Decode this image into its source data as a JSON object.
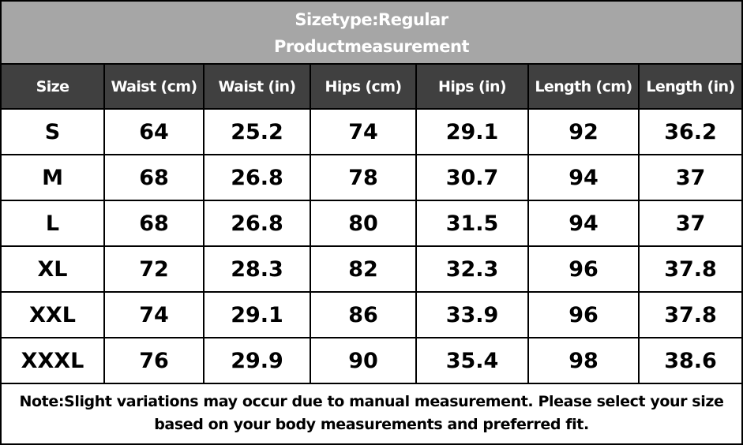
{
  "header": {
    "title": "Sizetype:Regular",
    "subtitle": "Productmeasurement"
  },
  "table": {
    "columns": [
      "Size",
      "Waist (cm)",
      "Waist (in)",
      "Hips (cm)",
      "Hips (in)",
      "Length (cm)",
      "Length (in)"
    ],
    "rows": [
      [
        "S",
        "64",
        "25.2",
        "74",
        "29.1",
        "92",
        "36.2"
      ],
      [
        "M",
        "68",
        "26.8",
        "78",
        "30.7",
        "94",
        "37"
      ],
      [
        "L",
        "68",
        "26.8",
        "80",
        "31.5",
        "94",
        "37"
      ],
      [
        "XL",
        "72",
        "28.3",
        "82",
        "32.3",
        "96",
        "37.8"
      ],
      [
        "XXL",
        "74",
        "29.1",
        "86",
        "33.9",
        "96",
        "37.8"
      ],
      [
        "XXXL",
        "76",
        "29.9",
        "90",
        "35.4",
        "98",
        "38.6"
      ]
    ]
  },
  "note": [
    "Note:Slight variations may occur due to manual measurement. Please select your size",
    "based on your body measurements and preferred fit."
  ]
}
